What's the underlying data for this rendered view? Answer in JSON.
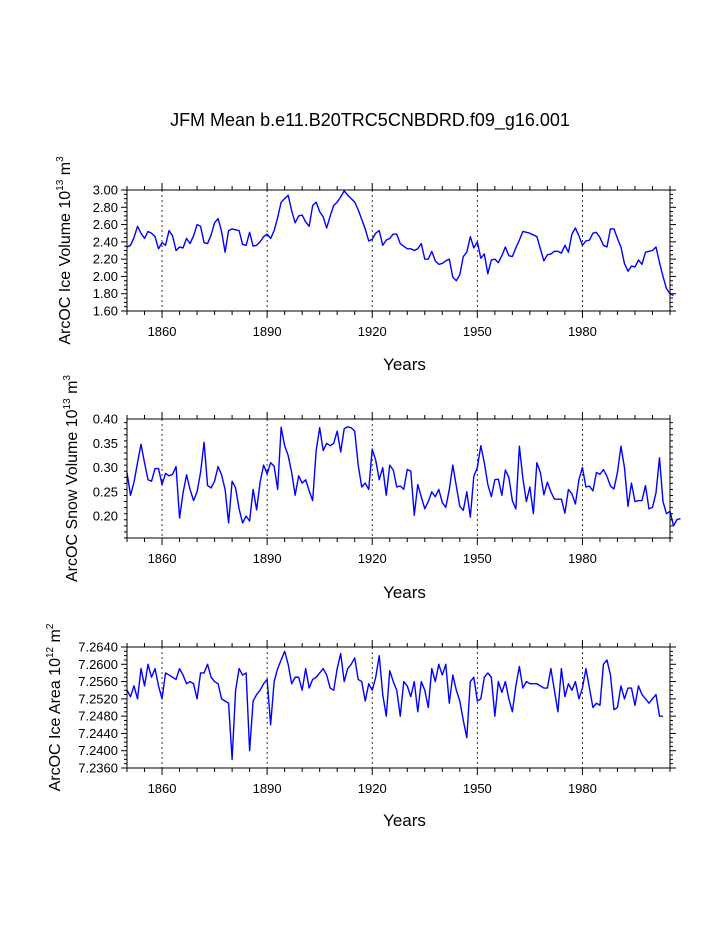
{
  "title": "JFM Mean b.e11.B20TRC5CNBDRD.f09_g16.001",
  "colors": {
    "line": "#0000ff",
    "axis": "#000000",
    "background": "#ffffff"
  },
  "chart_data": [
    {
      "type": "line",
      "xlabel": "Years",
      "ylabel": "ArcOC Ice Volume 10",
      "ylabel_exp": "13",
      "ylabel_unit": " m",
      "ylabel_unit_exp": "3",
      "xlim": [
        1850,
        2005
      ],
      "ylim": [
        1.6,
        3.0
      ],
      "xticks": [
        1860,
        1890,
        1920,
        1950,
        1980
      ],
      "xtick_labels": [
        "1860",
        "1890",
        "1920",
        "1950",
        "1980"
      ],
      "yticks": [
        1.6,
        1.8,
        2.0,
        2.2,
        2.4,
        2.6,
        2.8,
        3.0
      ],
      "ytick_labels": [
        "1.60",
        "1.80",
        "2.00",
        "2.20",
        "2.40",
        "2.60",
        "2.80",
        "3.00"
      ],
      "vlines": [
        1860,
        1890,
        1920,
        1950,
        1980
      ],
      "series": [
        {
          "name": "ArcOC Ice Volume",
          "x_start": 1850,
          "values": [
            2.34,
            2.36,
            2.45,
            2.58,
            2.5,
            2.44,
            2.52,
            2.5,
            2.46,
            2.32,
            2.39,
            2.36,
            2.53,
            2.47,
            2.3,
            2.34,
            2.33,
            2.44,
            2.38,
            2.47,
            2.6,
            2.58,
            2.39,
            2.38,
            2.48,
            2.62,
            2.67,
            2.52,
            2.28,
            2.53,
            2.55,
            2.54,
            2.53,
            2.37,
            2.36,
            2.51,
            2.35,
            2.36,
            2.4,
            2.46,
            2.49,
            2.44,
            2.53,
            2.68,
            2.86,
            2.9,
            2.94,
            2.76,
            2.62,
            2.7,
            2.71,
            2.63,
            2.58,
            2.82,
            2.86,
            2.75,
            2.69,
            2.56,
            2.7,
            2.82,
            2.86,
            2.92,
            2.99,
            2.94,
            2.9,
            2.86,
            2.77,
            2.66,
            2.55,
            2.41,
            2.43,
            2.5,
            2.53,
            2.36,
            2.42,
            2.44,
            2.49,
            2.49,
            2.38,
            2.35,
            2.32,
            2.32,
            2.3,
            2.32,
            2.38,
            2.2,
            2.2,
            2.29,
            2.18,
            2.14,
            2.15,
            2.18,
            2.2,
            1.99,
            1.95,
            2.02,
            2.23,
            2.28,
            2.46,
            2.33,
            2.4,
            2.21,
            2.26,
            2.03,
            2.19,
            2.2,
            2.16,
            2.24,
            2.34,
            2.24,
            2.23,
            2.33,
            2.42,
            2.52,
            2.51,
            2.5,
            2.48,
            2.46,
            2.32,
            2.18,
            2.25,
            2.26,
            2.29,
            2.29,
            2.27,
            2.36,
            2.28,
            2.49,
            2.56,
            2.47,
            2.36,
            2.41,
            2.42,
            2.5,
            2.51,
            2.45,
            2.36,
            2.34,
            2.55,
            2.55,
            2.44,
            2.34,
            2.15,
            2.06,
            2.12,
            2.11,
            2.19,
            2.14,
            2.28,
            2.29,
            2.3,
            2.34,
            2.16,
            2.0,
            1.86,
            1.8,
            1.78
          ]
        }
      ]
    },
    {
      "type": "line",
      "xlabel": "Years",
      "ylabel": "ArcOC Snow Volume 10",
      "ylabel_exp": "13",
      "ylabel_unit": " m",
      "ylabel_unit_exp": "3",
      "xlim": [
        1850,
        2005
      ],
      "ylim": [
        0.155,
        0.4
      ],
      "xticks": [
        1860,
        1890,
        1920,
        1950,
        1980
      ],
      "xtick_labels": [
        "1860",
        "1890",
        "1920",
        "1950",
        "1980"
      ],
      "yticks": [
        0.2,
        0.25,
        0.3,
        0.35,
        0.4
      ],
      "ytick_labels": [
        "0.20",
        "0.25",
        "0.30",
        "0.35",
        "0.40"
      ],
      "vlines": [
        1860,
        1890,
        1920,
        1950,
        1980
      ],
      "series": [
        {
          "name": "ArcOC Snow Volume",
          "x_start": 1850,
          "values": [
            0.29,
            0.243,
            0.27,
            0.31,
            0.348,
            0.31,
            0.275,
            0.272,
            0.298,
            0.298,
            0.265,
            0.288,
            0.283,
            0.286,
            0.302,
            0.196,
            0.248,
            0.285,
            0.255,
            0.232,
            0.25,
            0.29,
            0.352,
            0.263,
            0.258,
            0.272,
            0.302,
            0.285,
            0.255,
            0.186,
            0.272,
            0.258,
            0.215,
            0.186,
            0.2,
            0.19,
            0.255,
            0.213,
            0.27,
            0.305,
            0.287,
            0.31,
            0.303,
            0.255,
            0.383,
            0.345,
            0.325,
            0.29,
            0.243,
            0.283,
            0.268,
            0.275,
            0.252,
            0.232,
            0.335,
            0.382,
            0.335,
            0.35,
            0.345,
            0.35,
            0.375,
            0.332,
            0.38,
            0.384,
            0.382,
            0.375,
            0.305,
            0.26,
            0.268,
            0.255,
            0.338,
            0.315,
            0.275,
            0.3,
            0.243,
            0.305,
            0.295,
            0.26,
            0.262,
            0.255,
            0.296,
            0.293,
            0.202,
            0.265,
            0.24,
            0.215,
            0.23,
            0.25,
            0.24,
            0.255,
            0.228,
            0.218,
            0.255,
            0.305,
            0.262,
            0.22,
            0.212,
            0.25,
            0.198,
            0.282,
            0.3,
            0.345,
            0.31,
            0.265,
            0.24,
            0.275,
            0.276,
            0.243,
            0.295,
            0.28,
            0.232,
            0.215,
            0.344,
            0.278,
            0.23,
            0.26,
            0.205,
            0.31,
            0.29,
            0.244,
            0.27,
            0.25,
            0.235,
            0.235,
            0.235,
            0.206,
            0.255,
            0.246,
            0.225,
            0.275,
            0.3,
            0.26,
            0.262,
            0.252,
            0.29,
            0.286,
            0.296,
            0.282,
            0.262,
            0.256,
            0.29,
            0.344,
            0.3,
            0.22,
            0.268,
            0.23,
            0.232,
            0.232,
            0.263,
            0.215,
            0.218,
            0.248,
            0.32,
            0.23,
            0.205,
            0.21,
            0.18,
            0.193,
            0.195
          ]
        }
      ]
    },
    {
      "type": "line",
      "xlabel": "Years",
      "ylabel": "ArcOC Ice Area 10",
      "ylabel_exp": "12",
      "ylabel_unit": " m",
      "ylabel_unit_exp": "2",
      "xlim": [
        1850,
        2005
      ],
      "ylim": [
        7.236,
        7.264
      ],
      "xticks": [
        1860,
        1890,
        1920,
        1950,
        1980
      ],
      "xtick_labels": [
        "1860",
        "1890",
        "1920",
        "1950",
        "1980"
      ],
      "yticks": [
        7.236,
        7.24,
        7.244,
        7.248,
        7.252,
        7.256,
        7.26,
        7.264
      ],
      "ytick_labels": [
        "7.2360",
        "7.2400",
        "7.2440",
        "7.2480",
        "7.2520",
        "7.2560",
        "7.2600",
        "7.2640"
      ],
      "vlines": [
        1860,
        1890,
        1920,
        1950,
        1980
      ],
      "series": [
        {
          "name": "ArcOC Ice Area",
          "x_start": 1850,
          "values": [
            7.254,
            7.2525,
            7.255,
            7.252,
            7.259,
            7.255,
            7.26,
            7.257,
            7.259,
            7.255,
            7.252,
            7.258,
            7.2575,
            7.257,
            7.2565,
            7.259,
            7.2575,
            7.2555,
            7.256,
            7.2555,
            7.252,
            7.258,
            7.258,
            7.26,
            7.257,
            7.256,
            7.2555,
            7.252,
            7.2515,
            7.251,
            7.238,
            7.254,
            7.259,
            7.2575,
            7.258,
            7.24,
            7.2515,
            7.253,
            7.254,
            7.2555,
            7.2565,
            7.246,
            7.256,
            7.259,
            7.261,
            7.263,
            7.26,
            7.2555,
            7.257,
            7.257,
            7.254,
            7.259,
            7.2545,
            7.2565,
            7.257,
            7.258,
            7.259,
            7.2575,
            7.2545,
            7.254,
            7.259,
            7.2625,
            7.256,
            7.259,
            7.26,
            7.2615,
            7.2565,
            7.256,
            7.2515,
            7.2555,
            7.254,
            7.257,
            7.262,
            7.253,
            7.248,
            7.2585,
            7.256,
            7.254,
            7.248,
            7.256,
            7.255,
            7.2525,
            7.256,
            7.249,
            7.256,
            7.254,
            7.25,
            7.259,
            7.256,
            7.26,
            7.2575,
            7.26,
            7.251,
            7.2575,
            7.254,
            7.2515,
            7.247,
            7.243,
            7.256,
            7.257,
            7.2515,
            7.252,
            7.257,
            7.258,
            7.257,
            7.248,
            7.256,
            7.2535,
            7.256,
            7.252,
            7.249,
            7.255,
            7.2595,
            7.2545,
            7.256,
            7.2555,
            7.2555,
            7.2555,
            7.255,
            7.2545,
            7.2545,
            7.259,
            7.254,
            7.249,
            7.259,
            7.2525,
            7.2555,
            7.254,
            7.256,
            7.252,
            7.2545,
            7.259,
            7.2545,
            7.25,
            7.251,
            7.2505,
            7.26,
            7.261,
            7.2575,
            7.2495,
            7.25,
            7.255,
            7.252,
            7.2545,
            7.2545,
            7.2505,
            7.255,
            7.253,
            7.252,
            7.251,
            7.252,
            7.253,
            7.248,
            7.248
          ]
        }
      ]
    }
  ]
}
